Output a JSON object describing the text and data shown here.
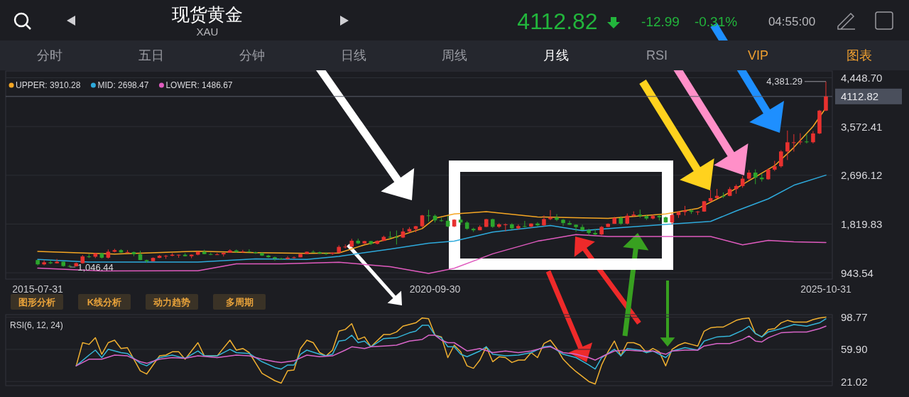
{
  "chart_data": [
    {
      "type": "candlestick",
      "title": "现货黄金",
      "subtitle": "XAU",
      "x": [
        "2015-07",
        "2015-08",
        "2015-09",
        "2015-10",
        "2015-11",
        "2015-12",
        "2016-01",
        "2016-02",
        "2016-03",
        "2016-04",
        "2016-05",
        "2016-06",
        "2016-07",
        "2016-08",
        "2016-09",
        "2016-10",
        "2016-11",
        "2016-12",
        "2017-01",
        "2017-02",
        "2017-03",
        "2017-04",
        "2017-05",
        "2017-06",
        "2017-07",
        "2017-08",
        "2017-09",
        "2017-10",
        "2017-11",
        "2017-12",
        "2018-01",
        "2018-02",
        "2018-03",
        "2018-04",
        "2018-05",
        "2018-06",
        "2018-07",
        "2018-08",
        "2018-09",
        "2018-10",
        "2018-11",
        "2018-12",
        "2019-01",
        "2019-02",
        "2019-03",
        "2019-04",
        "2019-05",
        "2019-06",
        "2019-07",
        "2019-08",
        "2019-09",
        "2019-10",
        "2019-11",
        "2019-12",
        "2020-01",
        "2020-02",
        "2020-03",
        "2020-04",
        "2020-05",
        "2020-06",
        "2020-07",
        "2020-08",
        "2020-09",
        "2020-10",
        "2020-11",
        "2020-12",
        "2021-01",
        "2021-02",
        "2021-03",
        "2021-04",
        "2021-05",
        "2021-06",
        "2021-07",
        "2021-08",
        "2021-09",
        "2021-10",
        "2021-11",
        "2021-12",
        "2022-01",
        "2022-02",
        "2022-03",
        "2022-04",
        "2022-05",
        "2022-06",
        "2022-07",
        "2022-08",
        "2022-09",
        "2022-10",
        "2022-11",
        "2022-12",
        "2023-01",
        "2023-02",
        "2023-03",
        "2023-04",
        "2023-05",
        "2023-06",
        "2023-07",
        "2023-08",
        "2023-09",
        "2023-10",
        "2023-11",
        "2023-12",
        "2024-01",
        "2024-02",
        "2024-03",
        "2024-04",
        "2024-05",
        "2024-06",
        "2024-07",
        "2024-08",
        "2024-09",
        "2024-10",
        "2024-11",
        "2024-12",
        "2025-01",
        "2025-02",
        "2025-03",
        "2025-04",
        "2025-05",
        "2025-06",
        "2025-07",
        "2025-08",
        "2025-09",
        "2025-10"
      ],
      "ohlc": [
        [
          1172,
          1174,
          1077,
          1095
        ],
        [
          1095,
          1170,
          1078,
          1132
        ],
        [
          1132,
          1170,
          1099,
          1115
        ],
        [
          1115,
          1192,
          1110,
          1142
        ],
        [
          1142,
          1146,
          1052,
          1065
        ],
        [
          1065,
          1088,
          1046.44,
          1061
        ],
        [
          1061,
          1129,
          1055,
          1116
        ],
        [
          1116,
          1263,
          1107,
          1238
        ],
        [
          1238,
          1283,
          1208,
          1233
        ],
        [
          1233,
          1304,
          1207,
          1293
        ],
        [
          1293,
          1304,
          1200,
          1215
        ],
        [
          1215,
          1362,
          1199,
          1322
        ],
        [
          1322,
          1375,
          1310,
          1351
        ],
        [
          1351,
          1367,
          1301,
          1309
        ],
        [
          1309,
          1352,
          1302,
          1316
        ],
        [
          1316,
          1325,
          1241,
          1277
        ],
        [
          1277,
          1338,
          1171,
          1173
        ],
        [
          1173,
          1180,
          1122,
          1152
        ],
        [
          1152,
          1220,
          1146,
          1211
        ],
        [
          1211,
          1264,
          1208,
          1249
        ],
        [
          1249,
          1262,
          1195,
          1249
        ],
        [
          1249,
          1296,
          1241,
          1268
        ],
        [
          1268,
          1270,
          1214,
          1268
        ],
        [
          1268,
          1296,
          1237,
          1242
        ],
        [
          1242,
          1274,
          1205,
          1269
        ],
        [
          1269,
          1331,
          1258,
          1322
        ],
        [
          1322,
          1358,
          1276,
          1280
        ],
        [
          1280,
          1306,
          1261,
          1271
        ],
        [
          1271,
          1299,
          1264,
          1275
        ],
        [
          1275,
          1308,
          1236,
          1303
        ],
        [
          1303,
          1366,
          1302,
          1345
        ],
        [
          1345,
          1362,
          1307,
          1318
        ],
        [
          1318,
          1356,
          1303,
          1325
        ],
        [
          1325,
          1365,
          1313,
          1315
        ],
        [
          1315,
          1326,
          1282,
          1299
        ],
        [
          1299,
          1309,
          1245,
          1253
        ],
        [
          1253,
          1266,
          1211,
          1224
        ],
        [
          1224,
          1235,
          1160,
          1201
        ],
        [
          1201,
          1214,
          1180,
          1192
        ],
        [
          1192,
          1243,
          1183,
          1215
        ],
        [
          1215,
          1238,
          1196,
          1222
        ],
        [
          1222,
          1285,
          1221,
          1282
        ],
        [
          1282,
          1326,
          1277,
          1321
        ],
        [
          1321,
          1347,
          1310,
          1313
        ],
        [
          1313,
          1325,
          1281,
          1292
        ],
        [
          1292,
          1310,
          1266,
          1284
        ],
        [
          1284,
          1306,
          1266,
          1305
        ],
        [
          1305,
          1439,
          1300,
          1409
        ],
        [
          1409,
          1453,
          1382,
          1413
        ],
        [
          1413,
          1555,
          1400,
          1520
        ],
        [
          1520,
          1557,
          1459,
          1472
        ],
        [
          1472,
          1518,
          1459,
          1513
        ],
        [
          1513,
          1516,
          1445,
          1464
        ],
        [
          1464,
          1525,
          1454,
          1517
        ],
        [
          1517,
          1611,
          1516,
          1589
        ],
        [
          1589,
          1689,
          1562,
          1585
        ],
        [
          1585,
          1704,
          1451,
          1577
        ],
        [
          1577,
          1748,
          1567,
          1686
        ],
        [
          1686,
          1765,
          1670,
          1730
        ],
        [
          1730,
          1786,
          1671,
          1781
        ],
        [
          1781,
          1984,
          1757,
          1975
        ],
        [
          1975,
          2075,
          1863,
          1968
        ],
        [
          1968,
          1992,
          1848,
          1886
        ],
        [
          1886,
          1933,
          1860,
          1879
        ],
        [
          1879,
          1966,
          1764,
          1776
        ],
        [
          1776,
          1906,
          1765,
          1898
        ],
        [
          1898,
          1959,
          1802,
          1847
        ],
        [
          1847,
          1872,
          1717,
          1734
        ],
        [
          1734,
          1755,
          1677,
          1708
        ],
        [
          1708,
          1798,
          1706,
          1769
        ],
        [
          1769,
          1913,
          1766,
          1907
        ],
        [
          1907,
          1917,
          1751,
          1770
        ],
        [
          1770,
          1834,
          1750,
          1814
        ],
        [
          1814,
          1832,
          1688,
          1814
        ],
        [
          1814,
          1835,
          1722,
          1743
        ],
        [
          1743,
          1814,
          1722,
          1783
        ],
        [
          1783,
          1877,
          1759,
          1774
        ],
        [
          1774,
          1831,
          1753,
          1829
        ],
        [
          1829,
          1853,
          1780,
          1797
        ],
        [
          1797,
          1974,
          1781,
          1909
        ],
        [
          1909,
          2070,
          1890,
          1937
        ],
        [
          1937,
          1998,
          1872,
          1897
        ],
        [
          1897,
          1910,
          1787,
          1837
        ],
        [
          1837,
          1879,
          1805,
          1807
        ],
        [
          1807,
          1814,
          1681,
          1766
        ],
        [
          1766,
          1808,
          1709,
          1711
        ],
        [
          1711,
          1735,
          1615,
          1660
        ],
        [
          1660,
          1730,
          1618,
          1633
        ],
        [
          1633,
          1786,
          1617,
          1768
        ],
        [
          1768,
          1833,
          1765,
          1824
        ],
        [
          1824,
          1949,
          1823,
          1928
        ],
        [
          1928,
          1960,
          1804,
          1827
        ],
        [
          1827,
          2009,
          1810,
          1969
        ],
        [
          1969,
          2048,
          1950,
          1990
        ],
        [
          1990,
          2079,
          1932,
          1963
        ],
        [
          1963,
          1983,
          1893,
          1919
        ],
        [
          1919,
          1987,
          1903,
          1965
        ],
        [
          1965,
          1987,
          1885,
          1940
        ],
        [
          1940,
          1953,
          1846,
          1849
        ],
        [
          1849,
          2009,
          1810,
          1983
        ],
        [
          1983,
          2052,
          1931,
          2036
        ],
        [
          2036,
          2146,
          1973,
          2063
        ],
        [
          2063,
          2088,
          2002,
          2039
        ],
        [
          2039,
          2052,
          1984,
          2044
        ],
        [
          2044,
          2236,
          2039,
          2230
        ],
        [
          2230,
          2432,
          2228,
          2286
        ],
        [
          2286,
          2450,
          2278,
          2327
        ],
        [
          2327,
          2388,
          2286,
          2326
        ],
        [
          2326,
          2484,
          2319,
          2447
        ],
        [
          2447,
          2531,
          2364,
          2503
        ],
        [
          2503,
          2686,
          2471,
          2635
        ],
        [
          2635,
          2790,
          2604,
          2744
        ],
        [
          2744,
          2801,
          2537,
          2654
        ],
        [
          2654,
          2726,
          2583,
          2625
        ],
        [
          2625,
          2817,
          2614,
          2798
        ],
        [
          2798,
          2956,
          2772,
          2858
        ],
        [
          2858,
          3148,
          2833,
          3124
        ],
        [
          3124,
          3500,
          2970,
          3289
        ],
        [
          3289,
          3435,
          3121,
          3289
        ],
        [
          3289,
          3452,
          3247,
          3303
        ],
        [
          3303,
          3439,
          3268,
          3290
        ],
        [
          3290,
          3490,
          3268,
          3448
        ],
        [
          3448,
          3871,
          3436,
          3858
        ],
        [
          3858,
          4381.29,
          3850,
          4112.82
        ]
      ],
      "series": [
        {
          "name": "UPPER: 3910.28",
          "type": "line",
          "color": "#f5a623",
          "x": [
            "2015-07",
            "2016-07",
            "2017-08",
            "2018-05",
            "2019-01",
            "2019-06",
            "2019-10",
            "2020-02",
            "2020-07",
            "2020-09",
            "2020-12",
            "2021-05",
            "2022-01",
            "2022-12",
            "2023-09",
            "2024-02",
            "2024-06",
            "2024-10",
            "2025-02",
            "2025-05",
            "2025-08",
            "2025-10"
          ],
          "values": [
            1327,
            1279,
            1332,
            1305,
            1292,
            1300,
            1447,
            1554,
            1738,
            1924,
            2001,
            2044,
            1947,
            1920,
            2001,
            2099,
            2326,
            2599,
            2870,
            3196,
            3575,
            3910.28
          ]
        },
        {
          "name": "MID: 2698.47",
          "type": "line",
          "color": "#2eaadc",
          "x": [
            "2015-07",
            "2016-03",
            "2017-08",
            "2018-05",
            "2019-01",
            "2019-06",
            "2020-02",
            "2020-08",
            "2020-12",
            "2021-06",
            "2022-03",
            "2022-08",
            "2023-02",
            "2023-09",
            "2024-04",
            "2024-08",
            "2025-01",
            "2025-05",
            "2025-10"
          ],
          "values": [
            1185,
            1137,
            1137,
            1195,
            1185,
            1240,
            1369,
            1474,
            1511,
            1675,
            1795,
            1700,
            1756,
            1812,
            1866,
            2056,
            2272,
            2517,
            2698.47
          ]
        },
        {
          "name": "LOWER: 1486.67",
          "type": "line",
          "color": "#e05bbf",
          "x": [
            "2015-07",
            "2016-05",
            "2017-08",
            "2018-02",
            "2018-09",
            "2019-06",
            "2020-02",
            "2020-08",
            "2020-12",
            "2021-06",
            "2022-01",
            "2022-07",
            "2022-12",
            "2023-09",
            "2024-04",
            "2024-09",
            "2025-01",
            "2025-05",
            "2025-10"
          ],
          "values": [
            1026,
            975,
            981,
            1106,
            1106,
            1132,
            1053,
            932,
            1024,
            1284,
            1511,
            1632,
            1594,
            1594,
            1594,
            1447,
            1524,
            1502,
            1486.67
          ]
        }
      ],
      "xlim": [
        "2015-02",
        "2025-11"
      ],
      "xticks": [
        {
          "value": "2015-07",
          "label": "2015-07-31"
        },
        {
          "value": "2020-09",
          "label": "2020-09-30"
        },
        {
          "value": "2025-10",
          "label": "2025-10-31"
        }
      ],
      "ylim": [
        830,
        4570
      ],
      "yticks": [
        {
          "value": 943.54,
          "label": "943.54"
        },
        {
          "value": 1819.83,
          "label": "1,819.83"
        },
        {
          "value": 2696.12,
          "label": "2,696.12"
        },
        {
          "value": 3572.41,
          "label": "3,572.41"
        },
        {
          "value": 4448.7,
          "label": "4,448.70"
        }
      ],
      "grid": "y",
      "legend": "top left",
      "ref_lines": [
        {
          "axis": "y",
          "value": 4112.82,
          "label": "4112.82"
        }
      ],
      "annotations": [
        {
          "text": "4,381.29",
          "x": "2025-10",
          "y": 4381.29
        },
        {
          "text": "1,046.44",
          "x": "2015-12",
          "y": 1046.44
        },
        "4112.82",
        "-12.99",
        "-0.31%",
        "04:55:00",
        "分时",
        "五日",
        "分钟",
        "日线",
        "周线",
        "月线",
        "RSI",
        "VIP",
        "图表",
        "图形分析",
        "K线分析",
        "动力趋势",
        "多周期"
      ]
    },
    {
      "type": "line",
      "title": "RSI(6, 12, 24)",
      "series": [
        {
          "type": "line",
          "color": "#f0b030",
          "x": [
            "2016-01",
            "2016-02",
            "2016-03",
            "2016-04",
            "2016-05",
            "2016-06",
            "2016-07",
            "2016-08",
            "2016-09",
            "2016-10",
            "2016-11",
            "2016-12",
            "2017-02",
            "2017-03",
            "2017-04",
            "2017-05",
            "2017-06",
            "2017-08",
            "2017-09",
            "2017-11",
            "2018-01",
            "2018-02",
            "2018-03",
            "2018-04",
            "2018-06",
            "2018-08",
            "2018-09",
            "2018-10",
            "2018-11",
            "2018-12",
            "2019-01",
            "2019-02",
            "2019-03",
            "2019-04",
            "2019-05",
            "2019-06",
            "2019-07",
            "2019-08",
            "2019-09",
            "2019-10",
            "2019-11",
            "2020-01",
            "2020-02",
            "2020-03",
            "2020-04",
            "2020-06",
            "2020-07",
            "2020-08",
            "2020-09",
            "2020-10",
            "2020-11",
            "2020-12",
            "2021-01",
            "2021-02",
            "2021-03",
            "2021-04",
            "2021-05",
            "2021-06",
            "2021-07",
            "2021-08",
            "2021-09",
            "2021-10",
            "2021-11",
            "2021-12",
            "2022-01",
            "2022-02",
            "2022-03",
            "2022-04",
            "2022-05",
            "2022-06",
            "2022-07",
            "2022-08",
            "2022-09",
            "2022-10",
            "2022-11",
            "2022-12",
            "2023-01",
            "2023-02",
            "2023-03",
            "2023-04",
            "2023-05",
            "2023-06",
            "2023-07",
            "2023-08",
            "2023-09",
            "2023-10",
            "2023-11",
            "2023-12",
            "2024-01",
            "2024-02",
            "2024-03",
            "2024-04",
            "2024-05",
            "2024-06",
            "2024-07",
            "2024-08",
            "2024-09",
            "2024-10",
            "2024-11",
            "2024-12",
            "2025-01",
            "2025-02",
            "2025-03",
            "2025-04",
            "2025-05",
            "2025-07",
            "2025-08",
            "2025-09",
            "2025-10"
          ],
          "values": [
            40,
            68,
            66,
            74,
            54,
            68,
            71,
            61,
            62,
            48,
            34,
            30,
            52,
            53,
            57,
            57,
            48,
            68,
            52,
            52,
            71,
            59,
            61,
            56,
            31,
            22,
            19,
            34,
            35,
            61,
            71,
            68,
            56,
            52,
            59,
            82,
            84,
            91,
            72,
            75,
            63,
            78,
            78,
            81,
            88,
            92,
            98,
            97,
            77,
            75,
            50,
            65,
            57,
            40,
            37,
            47,
            63,
            45,
            51,
            50,
            44,
            47,
            47,
            56,
            50,
            67,
            71,
            61,
            48,
            40,
            33,
            27,
            21,
            18,
            41,
            57,
            70,
            52,
            68,
            68,
            65,
            56,
            61,
            57,
            40,
            60,
            65,
            68,
            66,
            64,
            82,
            86,
            87,
            87,
            91,
            95,
            97,
            98,
            79,
            75,
            84,
            85,
            92,
            95,
            93,
            93,
            96,
            98,
            99
          ]
        },
        {
          "type": "line",
          "color": "#35b5d8",
          "x": [
            "2016-01",
            "2016-03",
            "2016-04",
            "2016-05",
            "2016-06",
            "2016-08",
            "2016-09",
            "2016-11",
            "2016-12",
            "2017-02",
            "2017-04",
            "2017-06",
            "2017-08",
            "2017-09",
            "2017-11",
            "2018-01",
            "2018-02",
            "2018-04",
            "2018-06",
            "2018-08",
            "2018-09",
            "2018-10",
            "2018-11",
            "2018-12",
            "2019-01",
            "2019-03",
            "2019-04",
            "2019-05",
            "2019-06",
            "2019-07",
            "2019-08",
            "2019-09",
            "2019-10",
            "2019-11",
            "2020-01",
            "2020-03",
            "2020-05",
            "2020-06",
            "2020-07",
            "2020-08",
            "2020-09",
            "2020-10",
            "2020-11",
            "2020-12",
            "2021-01",
            "2021-02",
            "2021-04",
            "2021-05",
            "2021-06",
            "2021-08",
            "2021-10",
            "2021-12",
            "2022-02",
            "2022-03",
            "2022-05",
            "2022-07",
            "2022-09",
            "2022-10",
            "2022-11",
            "2023-01",
            "2023-02",
            "2023-03",
            "2023-05",
            "2023-06",
            "2023-07",
            "2023-09",
            "2023-10",
            "2023-12",
            "2024-02",
            "2024-03",
            "2024-05",
            "2024-07",
            "2024-09",
            "2024-10",
            "2024-11",
            "2024-12",
            "2025-01",
            "2025-03",
            "2025-05",
            "2025-07",
            "2025-09",
            "2025-10"
          ],
          "values": [
            40,
            53,
            59,
            50,
            60,
            56,
            55,
            43,
            40,
            50,
            53,
            49,
            58,
            52,
            52,
            60,
            56,
            55,
            45,
            38,
            36,
            41,
            41,
            54,
            59,
            54,
            52,
            54,
            70,
            71,
            77,
            68,
            70,
            63,
            73,
            74,
            80,
            82,
            89,
            89,
            77,
            74,
            63,
            63,
            54,
            51,
            58,
            63,
            54,
            52,
            53,
            56,
            63,
            64,
            54,
            50,
            41,
            36,
            50,
            60,
            52,
            61,
            59,
            56,
            58,
            50,
            58,
            62,
            59,
            70,
            75,
            76,
            83,
            88,
            79,
            75,
            81,
            85,
            90,
            88,
            92,
            97
          ]
        },
        {
          "type": "line",
          "color": "#d865c8",
          "x": [
            "2016-01",
            "2016-03",
            "2016-05",
            "2016-07",
            "2016-09",
            "2016-11",
            "2016-12",
            "2017-02",
            "2017-04",
            "2017-06",
            "2017-08",
            "2017-11",
            "2018-02",
            "2018-04",
            "2018-06",
            "2018-08",
            "2018-09",
            "2018-11",
            "2019-01",
            "2019-03",
            "2019-05",
            "2019-07",
            "2019-08",
            "2019-10",
            "2019-11",
            "2020-01",
            "2020-03",
            "2020-05",
            "2020-07",
            "2020-08",
            "2020-09",
            "2020-10",
            "2020-11",
            "2020-12",
            "2021-02",
            "2021-04",
            "2021-06",
            "2021-08",
            "2021-10",
            "2021-12",
            "2022-02",
            "2022-03",
            "2022-05",
            "2022-07",
            "2022-09",
            "2022-10",
            "2022-11",
            "2023-01",
            "2023-03",
            "2023-05",
            "2023-07",
            "2023-09",
            "2023-10",
            "2023-12",
            "2024-02",
            "2024-03",
            "2024-05",
            "2024-07",
            "2024-09",
            "2024-10",
            "2024-11",
            "2024-12",
            "2025-01",
            "2025-03",
            "2025-05",
            "2025-07",
            "2025-09",
            "2025-10"
          ],
          "values": [
            40,
            48,
            48,
            53,
            52,
            45,
            43,
            48,
            50,
            49,
            52,
            50,
            53,
            52,
            48,
            45,
            44,
            46,
            53,
            51,
            52,
            59,
            63,
            61,
            63,
            64,
            65,
            70,
            72,
            77,
            77,
            71,
            68,
            68,
            58,
            61,
            56,
            58,
            56,
            58,
            62,
            63,
            56,
            54,
            50,
            47,
            51,
            58,
            59,
            58,
            58,
            54,
            58,
            59,
            59,
            64,
            67,
            67,
            72,
            76,
            70,
            69,
            74,
            80,
            81,
            81,
            85,
            88
          ]
        }
      ],
      "xlim": [
        "2015-02",
        "2025-11"
      ],
      "ylim": [
        16,
        102
      ],
      "yticks": [
        {
          "value": 21.02,
          "label": "21.02"
        },
        {
          "value": 59.9,
          "label": "59.90"
        },
        {
          "value": 98.77,
          "label": "98.77"
        }
      ],
      "grid": "y",
      "tick_labels": "y"
    }
  ]
}
